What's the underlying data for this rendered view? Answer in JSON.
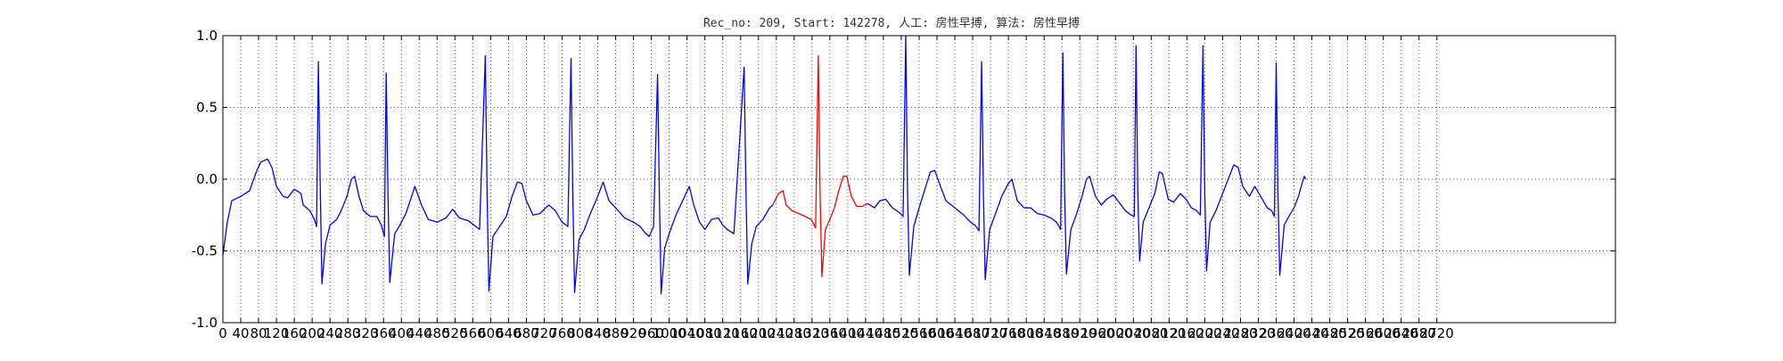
{
  "chart_data": {
    "type": "line",
    "title": "Rec_no: 209, Start: 142278, 人工: 房性早搏, 算法: 房性早搏",
    "xlabel": "",
    "ylabel": "",
    "xlim": [
      0,
      3120
    ],
    "ylim": [
      -1.0,
      1.0
    ],
    "grid": true,
    "yticks": [
      1.0,
      0.5,
      0.0,
      -0.5,
      -1.0
    ],
    "ytick_labels": [
      "1.0",
      "0.5",
      "0.0",
      "-0.5",
      "-1.0"
    ],
    "xtick_step": 40,
    "xtick_max": 2720,
    "colors": {
      "normal": "#0000ff",
      "highlight": "#ff0000",
      "grid": "#555555",
      "axes": "#000000"
    },
    "series": [
      {
        "color": "normal",
        "points": [
          [
            0,
            -0.53
          ],
          [
            10,
            -0.3
          ],
          [
            20,
            -0.15
          ],
          [
            40,
            -0.12
          ],
          [
            60,
            -0.08
          ],
          [
            75,
            0.05
          ],
          [
            85,
            0.12
          ],
          [
            100,
            0.14
          ],
          [
            110,
            0.08
          ],
          [
            120,
            -0.05
          ],
          [
            135,
            -0.12
          ],
          [
            145,
            -0.13
          ],
          [
            160,
            -0.07
          ],
          [
            175,
            -0.1
          ],
          [
            180,
            -0.18
          ],
          [
            195,
            -0.22
          ],
          [
            205,
            -0.28
          ],
          [
            210,
            -0.33
          ],
          [
            214,
            0.82
          ],
          [
            218,
            0.0
          ],
          [
            222,
            -0.73
          ],
          [
            230,
            -0.45
          ],
          [
            240,
            -0.32
          ],
          [
            255,
            -0.28
          ],
          [
            265,
            -0.22
          ],
          [
            278,
            -0.12
          ],
          [
            288,
            0.0
          ],
          [
            295,
            0.02
          ],
          [
            305,
            -0.12
          ],
          [
            315,
            -0.22
          ],
          [
            330,
            -0.26
          ],
          [
            345,
            -0.26
          ],
          [
            355,
            -0.32
          ],
          [
            362,
            -0.4
          ],
          [
            366,
            0.74
          ],
          [
            370,
            -0.1
          ],
          [
            374,
            -0.72
          ],
          [
            385,
            -0.38
          ],
          [
            395,
            -0.33
          ],
          [
            410,
            -0.24
          ],
          [
            425,
            -0.1
          ],
          [
            430,
            -0.05
          ],
          [
            445,
            -0.18
          ],
          [
            460,
            -0.28
          ],
          [
            480,
            -0.3
          ],
          [
            500,
            -0.27
          ],
          [
            515,
            -0.21
          ],
          [
            530,
            -0.27
          ],
          [
            550,
            -0.29
          ],
          [
            575,
            -0.35
          ],
          [
            588,
            0.86
          ],
          [
            592,
            -0.1
          ],
          [
            596,
            -0.78
          ],
          [
            605,
            -0.4
          ],
          [
            620,
            -0.33
          ],
          [
            635,
            -0.26
          ],
          [
            648,
            -0.12
          ],
          [
            660,
            -0.02
          ],
          [
            670,
            -0.03
          ],
          [
            680,
            -0.15
          ],
          [
            695,
            -0.25
          ],
          [
            710,
            -0.24
          ],
          [
            730,
            -0.18
          ],
          [
            745,
            -0.22
          ],
          [
            760,
            -0.3
          ],
          [
            773,
            -0.33
          ],
          [
            780,
            0.84
          ],
          [
            784,
            -0.1
          ],
          [
            788,
            -0.79
          ],
          [
            798,
            -0.42
          ],
          [
            810,
            -0.35
          ],
          [
            822,
            -0.25
          ],
          [
            840,
            -0.12
          ],
          [
            852,
            -0.02
          ],
          [
            865,
            -0.15
          ],
          [
            880,
            -0.2
          ],
          [
            900,
            -0.27
          ],
          [
            920,
            -0.3
          ],
          [
            935,
            -0.33
          ],
          [
            945,
            -0.37
          ],
          [
            955,
            -0.4
          ],
          [
            965,
            -0.33
          ],
          [
            974,
            0.73
          ],
          [
            978,
            -0.1
          ],
          [
            982,
            -0.8
          ],
          [
            990,
            -0.48
          ],
          [
            1000,
            -0.38
          ],
          [
            1015,
            -0.25
          ],
          [
            1030,
            -0.15
          ],
          [
            1045,
            -0.05
          ],
          [
            1055,
            -0.18
          ],
          [
            1068,
            -0.3
          ],
          [
            1080,
            -0.35
          ],
          [
            1095,
            -0.28
          ],
          [
            1110,
            -0.27
          ],
          [
            1120,
            -0.32
          ],
          [
            1130,
            -0.35
          ],
          [
            1145,
            -0.38
          ],
          [
            1168,
            0.78
          ],
          [
            1172,
            -0.1
          ],
          [
            1176,
            -0.73
          ],
          [
            1185,
            -0.45
          ],
          [
            1195,
            -0.33
          ],
          [
            1210,
            -0.28
          ],
          [
            1225,
            -0.2
          ],
          [
            1232,
            -0.18
          ]
        ]
      },
      {
        "color": "highlight",
        "points": [
          [
            1232,
            -0.18
          ],
          [
            1245,
            -0.1
          ],
          [
            1255,
            -0.08
          ],
          [
            1262,
            -0.18
          ],
          [
            1275,
            -0.22
          ],
          [
            1290,
            -0.24
          ],
          [
            1305,
            -0.26
          ],
          [
            1318,
            -0.28
          ],
          [
            1328,
            -0.34
          ],
          [
            1334,
            0.86
          ],
          [
            1338,
            -0.1
          ],
          [
            1342,
            -0.68
          ],
          [
            1350,
            -0.35
          ],
          [
            1360,
            -0.28
          ],
          [
            1370,
            -0.2
          ],
          [
            1380,
            -0.08
          ],
          [
            1390,
            0.02
          ],
          [
            1398,
            0.02
          ],
          [
            1408,
            -0.12
          ],
          [
            1420,
            -0.19
          ],
          [
            1432,
            -0.19
          ],
          [
            1445,
            -0.17
          ]
        ]
      },
      {
        "color": "normal",
        "points": [
          [
            1445,
            -0.17
          ],
          [
            1460,
            -0.2
          ],
          [
            1472,
            -0.15
          ],
          [
            1485,
            -0.14
          ],
          [
            1500,
            -0.2
          ],
          [
            1510,
            -0.22
          ],
          [
            1518,
            -0.24
          ],
          [
            1524,
            -0.26
          ],
          [
            1530,
            1.0
          ],
          [
            1534,
            -0.1
          ],
          [
            1538,
            -0.67
          ],
          [
            1548,
            -0.33
          ],
          [
            1560,
            -0.2
          ],
          [
            1575,
            -0.05
          ],
          [
            1585,
            0.05
          ],
          [
            1595,
            0.06
          ],
          [
            1608,
            -0.05
          ],
          [
            1620,
            -0.15
          ],
          [
            1640,
            -0.2
          ],
          [
            1660,
            -0.25
          ],
          [
            1675,
            -0.3
          ],
          [
            1685,
            -0.32
          ],
          [
            1694,
            -0.36
          ],
          [
            1700,
            0.82
          ],
          [
            1704,
            -0.1
          ],
          [
            1708,
            -0.7
          ],
          [
            1718,
            -0.35
          ],
          [
            1730,
            -0.25
          ],
          [
            1745,
            -0.12
          ],
          [
            1760,
            -0.03
          ],
          [
            1768,
            0.0
          ],
          [
            1780,
            -0.15
          ],
          [
            1795,
            -0.2
          ],
          [
            1810,
            -0.2
          ],
          [
            1825,
            -0.24
          ],
          [
            1840,
            -0.25
          ],
          [
            1855,
            -0.27
          ],
          [
            1868,
            -0.3
          ],
          [
            1877,
            -0.35
          ],
          [
            1882,
            0.88
          ],
          [
            1886,
            -0.1
          ],
          [
            1890,
            -0.66
          ],
          [
            1900,
            -0.35
          ],
          [
            1912,
            -0.25
          ],
          [
            1925,
            -0.12
          ],
          [
            1935,
            0.0
          ],
          [
            1942,
            0.02
          ],
          [
            1955,
            -0.12
          ],
          [
            1968,
            -0.18
          ],
          [
            1980,
            -0.14
          ],
          [
            1995,
            -0.11
          ],
          [
            2010,
            -0.17
          ],
          [
            2022,
            -0.22
          ],
          [
            2035,
            -0.25
          ],
          [
            2042,
            -0.26
          ],
          [
            2046,
            0.93
          ],
          [
            2050,
            -0.1
          ],
          [
            2054,
            -0.57
          ],
          [
            2062,
            -0.3
          ],
          [
            2075,
            -0.2
          ],
          [
            2088,
            -0.1
          ],
          [
            2098,
            0.05
          ],
          [
            2105,
            0.04
          ],
          [
            2118,
            -0.14
          ],
          [
            2130,
            -0.16
          ],
          [
            2145,
            -0.1
          ],
          [
            2158,
            -0.14
          ],
          [
            2170,
            -0.2
          ],
          [
            2182,
            -0.22
          ],
          [
            2190,
            -0.25
          ],
          [
            2196,
            0.93
          ],
          [
            2200,
            -0.1
          ],
          [
            2204,
            -0.64
          ],
          [
            2212,
            -0.3
          ],
          [
            2225,
            -0.22
          ],
          [
            2240,
            -0.1
          ],
          [
            2255,
            0.02
          ],
          [
            2265,
            0.1
          ],
          [
            2275,
            0.08
          ],
          [
            2285,
            -0.05
          ],
          [
            2300,
            -0.12
          ],
          [
            2312,
            -0.05
          ],
          [
            2325,
            -0.12
          ],
          [
            2340,
            -0.2
          ],
          [
            2350,
            -0.22
          ],
          [
            2356,
            -0.26
          ],
          [
            2360,
            0.81
          ],
          [
            2364,
            -0.1
          ],
          [
            2368,
            -0.67
          ],
          [
            2378,
            -0.32
          ],
          [
            2390,
            -0.25
          ],
          [
            2400,
            -0.2
          ],
          [
            2410,
            -0.12
          ],
          [
            2418,
            -0.03
          ],
          [
            2423,
            0.02
          ],
          [
            2426,
            0.0
          ]
        ]
      }
    ]
  }
}
